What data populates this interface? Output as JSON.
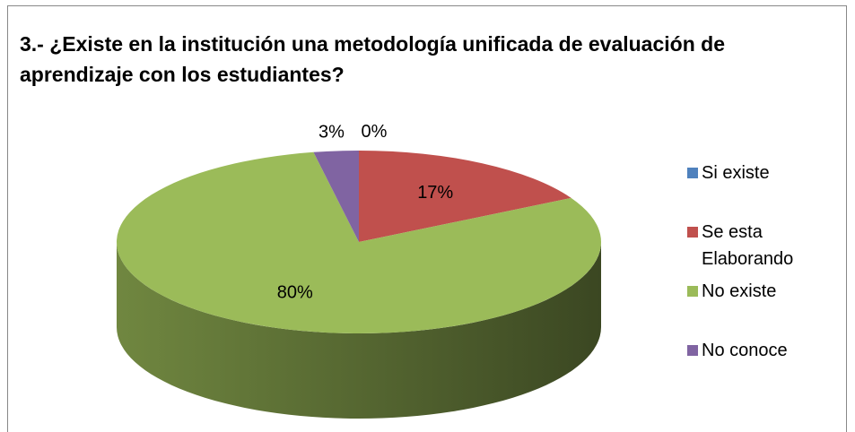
{
  "chart_data": {
    "type": "pie",
    "title": "3.- ¿Existe en la institución  una metodología  unificada de evaluación de aprendizaje  con los estudiantes?",
    "categories": [
      "Si existe",
      "Se esta Elaborando",
      "No existe",
      "No conoce"
    ],
    "values": [
      0,
      17,
      80,
      3
    ],
    "value_labels": [
      "0%",
      "17%",
      "80%",
      "3%"
    ],
    "colors": [
      "#4f81bd",
      "#c0504d",
      "#9bbb59",
      "#8064a2"
    ],
    "legend": "right"
  }
}
